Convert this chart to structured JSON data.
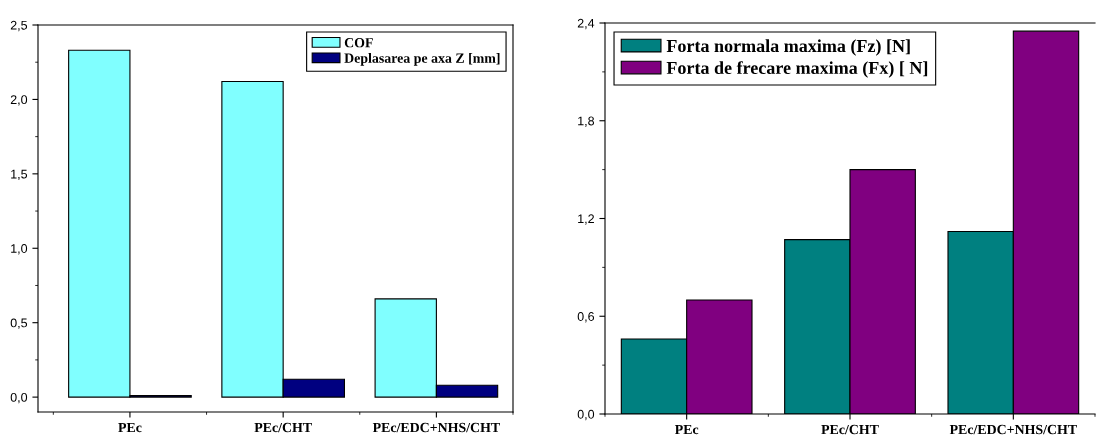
{
  "chart_data": [
    {
      "type": "bar",
      "categories": [
        "PEc",
        "PEc/CHT",
        "PEc/EDC+NHS/CHT"
      ],
      "series": [
        {
          "name": "COF",
          "color": "#80ffff",
          "values": [
            2.33,
            2.12,
            0.66
          ]
        },
        {
          "name": "Deplasarea pe axa Z [mm]",
          "color": "#000080",
          "values": [
            0.01,
            0.12,
            0.08
          ]
        }
      ],
      "ylim": [
        -0.1,
        2.5
      ],
      "yticks": [
        {
          "value": 0,
          "label": "0,0"
        },
        {
          "value": 0.25,
          "label": null
        },
        {
          "value": 0.5,
          "label": "0,5"
        },
        {
          "value": 0.75,
          "label": null
        },
        {
          "value": 1,
          "label": "1,0"
        },
        {
          "value": 1.25,
          "label": null
        },
        {
          "value": 1.5,
          "label": "1,5"
        },
        {
          "value": 1.75,
          "label": null
        },
        {
          "value": 2,
          "label": "2,0"
        },
        {
          "value": 2.25,
          "label": null
        },
        {
          "value": 2.5,
          "label": "2,5"
        }
      ],
      "grid": false,
      "legend": "top right"
    },
    {
      "type": "bar",
      "categories": [
        "PEc",
        "PEc/CHT",
        "PEc/EDC+NHS/CHT"
      ],
      "series": [
        {
          "name": "Forta normala maxima (Fz) [N]",
          "color": "#008080",
          "values": [
            0.46,
            1.07,
            1.12
          ]
        },
        {
          "name": "Forta de frecare maxima (Fx) [ N]",
          "color": "#800080",
          "values": [
            0.7,
            1.5,
            2.35
          ]
        }
      ],
      "ylim": [
        0,
        2.4
      ],
      "yticks": [
        {
          "value": 0,
          "label": "0,0"
        },
        {
          "value": 0.3,
          "label": null
        },
        {
          "value": 0.6,
          "label": "0,6"
        },
        {
          "value": 0.9,
          "label": null
        },
        {
          "value": 1.2,
          "label": "1,2"
        },
        {
          "value": 1.5,
          "label": null
        },
        {
          "value": 1.8,
          "label": "1,8"
        },
        {
          "value": 2.1,
          "label": null
        },
        {
          "value": 2.4,
          "label": "2,4"
        }
      ],
      "grid": false,
      "legend": "top left"
    }
  ]
}
